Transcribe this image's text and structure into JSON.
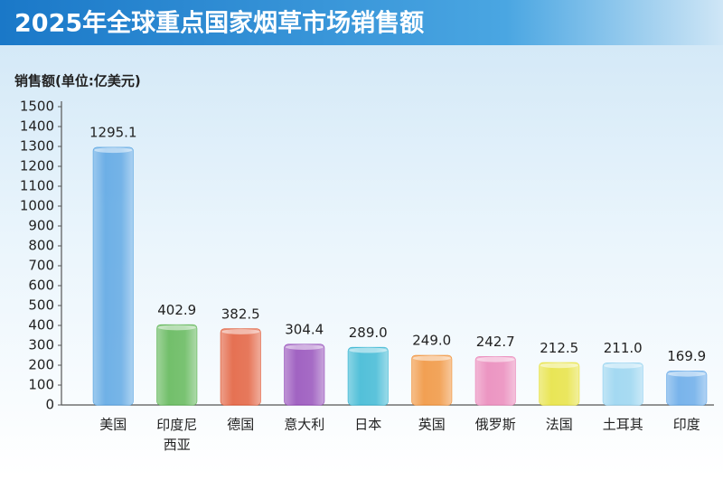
{
  "chart_data": {
    "type": "bar",
    "title": "2025年全球重点国家烟草市场销售额",
    "y_label": "销售额(单位:亿美元)",
    "categories": [
      "美国",
      "印度尼西亚",
      "德国",
      "意大利",
      "日本",
      "英国",
      "俄罗斯",
      "法国",
      "土耳其",
      "印度"
    ],
    "values": [
      1295.1,
      402.9,
      382.5,
      304.4,
      289.0,
      249.0,
      242.7,
      212.5,
      211.0,
      169.9
    ],
    "value_labels": [
      "1295.1",
      "402.9",
      "382.5",
      "304.4",
      "289.0",
      "249.0",
      "242.7",
      "212.5",
      "211.0",
      "169.9"
    ],
    "colors": [
      "#4f9fe0",
      "#52b048",
      "#e0502a",
      "#8c3eb4",
      "#2cb2d0",
      "#f0892a",
      "#e97db4",
      "#e5df2e",
      "#8fd0ef",
      "#5aa2e6"
    ],
    "ylim": [
      0,
      1500
    ],
    "yticks": [
      0,
      100,
      200,
      300,
      400,
      500,
      600,
      700,
      800,
      900,
      1000,
      1100,
      1200,
      1300,
      1400,
      1500
    ]
  }
}
